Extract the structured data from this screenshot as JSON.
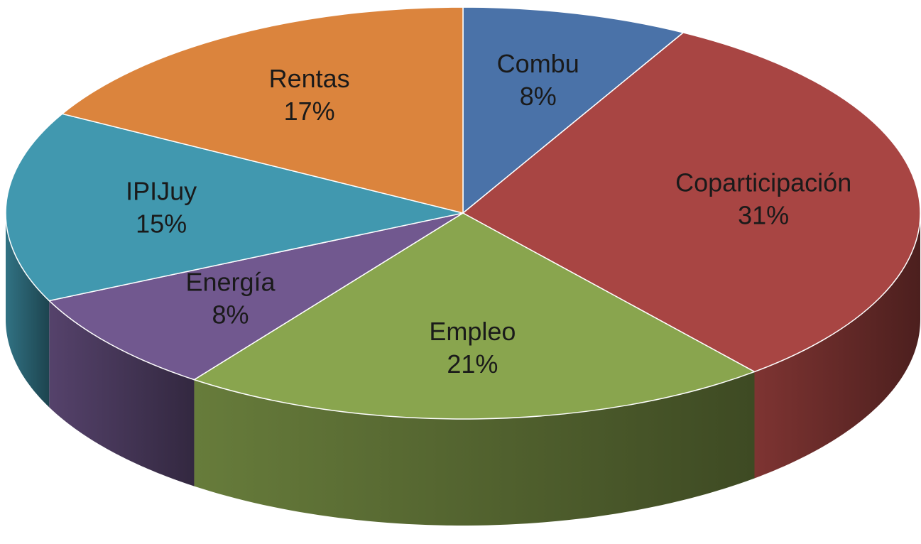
{
  "chart_data": {
    "type": "pie",
    "categories": [
      "Combu",
      "Coparticipación",
      "Empleo",
      "Energía",
      "IPIJuy",
      "Rentas"
    ],
    "values": [
      8,
      31,
      21,
      8,
      15,
      17
    ],
    "value_labels": [
      "8%",
      "31%",
      "21%",
      "8%",
      "15%",
      "17%"
    ],
    "colors": [
      "#4a72a8",
      "#a84543",
      "#89a54e",
      "#71588f",
      "#4198af",
      "#db843d"
    ]
  }
}
